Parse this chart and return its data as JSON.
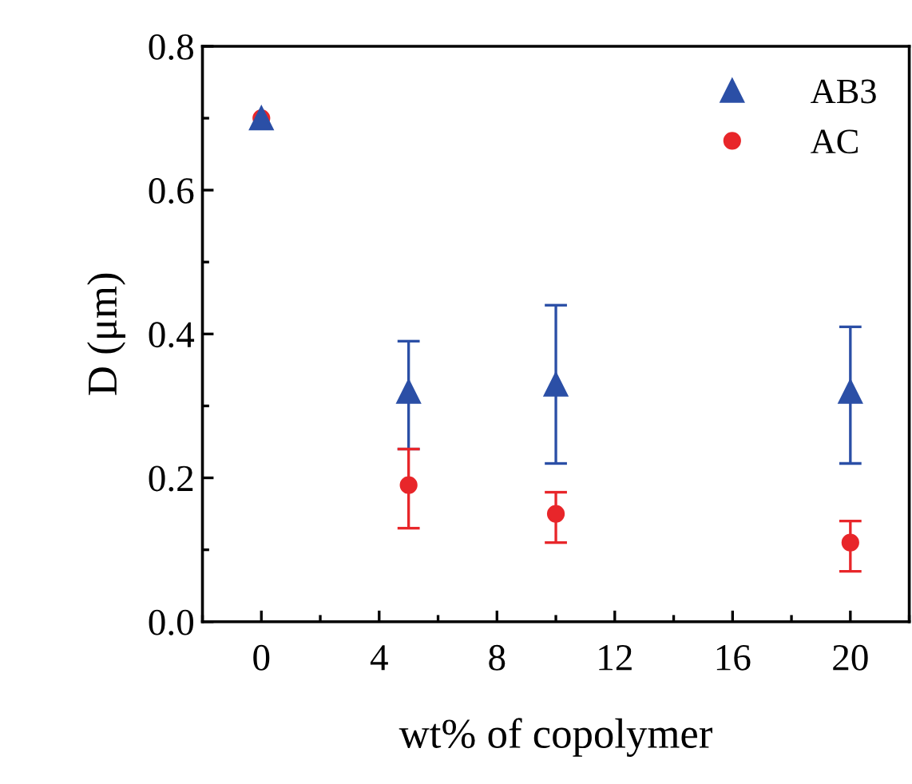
{
  "chart_data": {
    "type": "scatter",
    "xlabel": "wt% of copolymer",
    "ylabel": "D (μm)",
    "x": [
      0,
      5,
      10,
      20
    ],
    "series": [
      {
        "name": "AB3",
        "color": "#2b4fa6",
        "marker": "triangle",
        "values": [
          0.7,
          0.32,
          0.33,
          0.32
        ],
        "errors": [
          null,
          [
            0.24,
            0.39
          ],
          [
            0.22,
            0.44
          ],
          [
            0.22,
            0.41
          ]
        ]
      },
      {
        "name": "AC",
        "color": "#e8262a",
        "marker": "circle",
        "values": [
          0.7,
          0.19,
          0.15,
          0.11
        ],
        "errors": [
          null,
          [
            0.13,
            0.24
          ],
          [
            0.11,
            0.18
          ],
          [
            0.07,
            0.14
          ]
        ]
      }
    ],
    "xlim": [
      -2,
      22
    ],
    "xticks": [
      0,
      4,
      8,
      12,
      16,
      20
    ],
    "ylim": [
      0,
      0.8
    ],
    "yticks": [
      {
        "value": 0,
        "label": "0.0"
      },
      {
        "value": 0.2,
        "label": "0.2"
      },
      {
        "value": 0.4,
        "label": "0.4"
      },
      {
        "value": 0.6,
        "label": "0.6"
      },
      {
        "value": 0.8,
        "label": "0.8"
      }
    ],
    "legend": "top right",
    "grid": false
  }
}
